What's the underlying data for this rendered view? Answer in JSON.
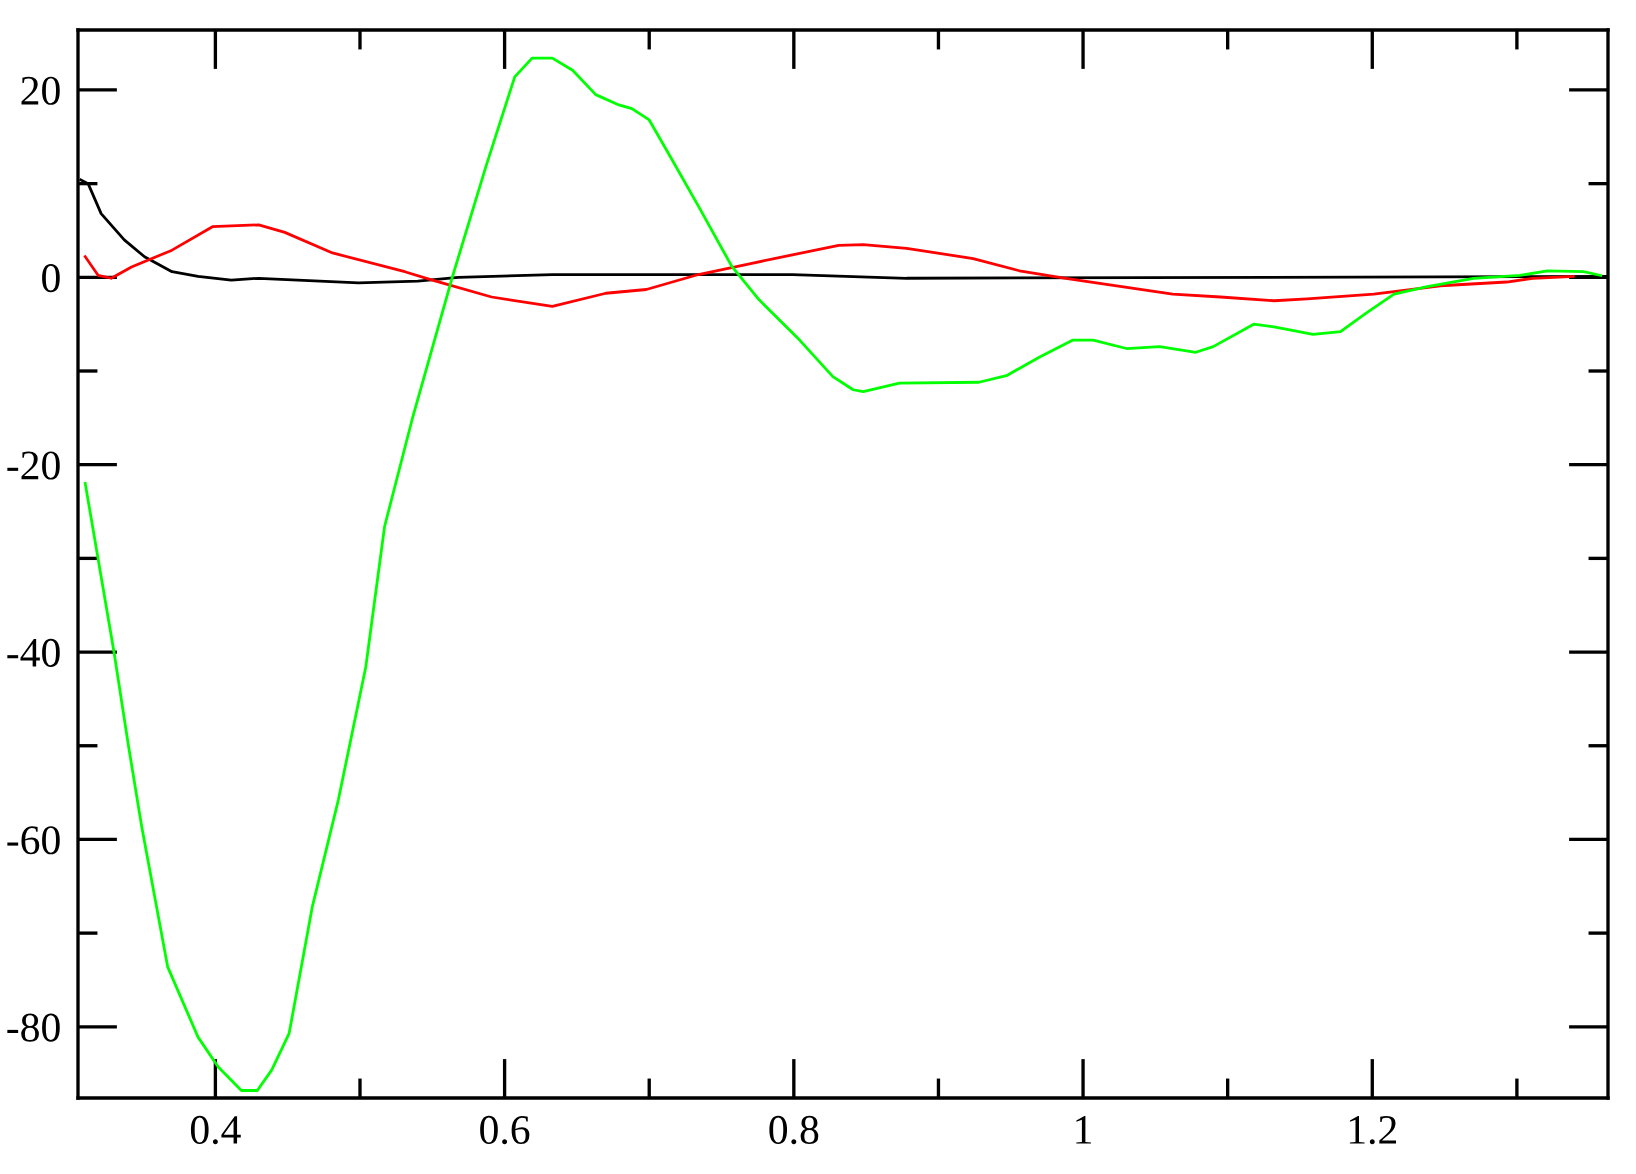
{
  "chart_data": {
    "type": "line",
    "xlim": [
      0.305,
      1.363
    ],
    "ylim": [
      -87.6,
      26.4
    ],
    "xticks": [
      0.4,
      {
        "value": 0.5,
        "label": null
      },
      0.6,
      {
        "value": 0.7,
        "label": null
      },
      0.8,
      {
        "value": 0.9,
        "label": null
      },
      1,
      {
        "value": 1.1,
        "label": null
      },
      1.2,
      {
        "value": 1.3,
        "label": null
      }
    ],
    "yticks": [
      {
        "value": -80,
        "label": "-80"
      },
      {
        "value": -70,
        "label": null
      },
      {
        "value": -60,
        "label": "-60"
      },
      {
        "value": -50,
        "label": null
      },
      {
        "value": -40,
        "label": "-40"
      },
      {
        "value": -30,
        "label": null
      },
      {
        "value": -20,
        "label": "-20"
      },
      {
        "value": -10,
        "label": null
      },
      0,
      {
        "value": 10,
        "label": null
      },
      20
    ],
    "marker": "none",
    "line_style": "solid",
    "series": [
      {
        "color": "#000000",
        "x": [
          0.307,
          0.312,
          0.321,
          0.337,
          0.351,
          0.37,
          0.388,
          0.411,
          0.43,
          0.457,
          0.499,
          0.54,
          0.568,
          0.633,
          0.799,
          0.878,
          1.362
        ],
        "values": [
          10.4,
          10.0,
          6.8,
          4.0,
          2.2,
          0.6,
          0.1,
          -0.3,
          -0.1,
          -0.3,
          -0.6,
          -0.4,
          0.0,
          0.3,
          0.3,
          -0.1,
          0.1
        ]
      },
      {
        "color": "#ff0000",
        "x": [
          0.31,
          0.319,
          0.328,
          0.342,
          0.37,
          0.398,
          0.43,
          0.448,
          0.481,
          0.531,
          0.55,
          0.591,
          0.633,
          0.67,
          0.698,
          0.734,
          0.771,
          0.799,
          0.831,
          0.848,
          0.878,
          0.924,
          0.956,
          0.988,
          1.062,
          1.095,
          1.132,
          1.155,
          1.201,
          1.247,
          1.293,
          1.311,
          1.339
        ],
        "values": [
          2.2,
          0.2,
          -0.1,
          1.1,
          2.9,
          5.4,
          5.6,
          4.8,
          2.6,
          0.6,
          -0.3,
          -2.1,
          -3.1,
          -1.7,
          -1.3,
          0.3,
          1.5,
          2.4,
          3.4,
          3.5,
          3.1,
          2.0,
          0.7,
          -0.1,
          -1.8,
          -2.1,
          -2.5,
          -2.3,
          -1.8,
          -0.9,
          -0.5,
          -0.1,
          0.1
        ]
      },
      {
        "color": "#00ff00",
        "x": [
          0.31,
          0.33,
          0.34,
          0.349,
          0.367,
          0.388,
          0.402,
          0.418,
          0.429,
          0.439,
          0.451,
          0.467,
          0.485,
          0.504,
          0.517,
          0.536,
          0.564,
          0.587,
          0.607,
          0.619,
          0.633,
          0.647,
          0.663,
          0.679,
          0.688,
          0.7,
          0.716,
          0.734,
          0.757,
          0.776,
          0.804,
          0.827,
          0.841,
          0.848,
          0.873,
          0.928,
          0.947,
          0.97,
          0.993,
          1.007,
          1.03,
          1.053,
          1.078,
          1.09,
          1.118,
          1.132,
          1.159,
          1.178,
          1.196,
          1.215,
          1.238,
          1.27,
          1.302,
          1.321,
          1.346,
          1.358
        ],
        "values": [
          -22.0,
          -40.1,
          -50.1,
          -58.6,
          -73.6,
          -81.1,
          -84.3,
          -86.8,
          -86.8,
          -84.6,
          -80.7,
          -67.2,
          -55.8,
          -41.6,
          -26.6,
          -15.2,
          0.1,
          11.8,
          21.4,
          23.4,
          23.4,
          22.1,
          19.5,
          18.4,
          18.0,
          16.8,
          12.5,
          7.6,
          1.2,
          -2.4,
          -6.7,
          -10.6,
          -12.0,
          -12.2,
          -11.3,
          -11.2,
          -10.5,
          -8.5,
          -6.7,
          -6.7,
          -7.6,
          -7.4,
          -8.0,
          -7.4,
          -5.0,
          -5.3,
          -6.1,
          -5.8,
          -3.8,
          -1.8,
          -1.0,
          -0.1,
          0.2,
          0.7,
          0.6,
          0.2
        ]
      }
    ]
  }
}
